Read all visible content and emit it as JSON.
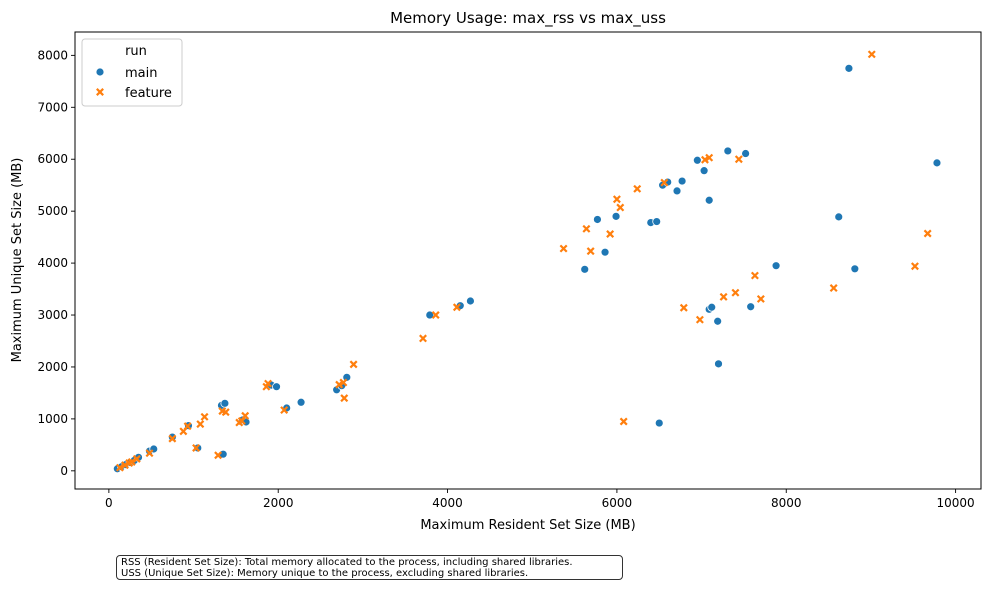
{
  "chart_data": {
    "type": "scatter",
    "title": "Memory Usage: max_rss vs max_uss",
    "xlabel": "Maximum Resident Set Size (MB)",
    "ylabel": "Maximum Unique Set Size (MB)",
    "xlim": [
      -400,
      10300
    ],
    "ylim": [
      -350,
      8450
    ],
    "xticks": [
      0,
      2000,
      4000,
      6000,
      8000,
      10000
    ],
    "yticks": [
      0,
      1000,
      2000,
      3000,
      4000,
      5000,
      6000,
      7000,
      8000
    ],
    "legend": {
      "title": "run",
      "position": "top-left"
    },
    "series": [
      {
        "name": "main",
        "marker": "circle",
        "color": "#1f77b4",
        "points": [
          [
            100,
            40
          ],
          [
            150,
            80
          ],
          [
            200,
            120
          ],
          [
            250,
            160
          ],
          [
            300,
            200
          ],
          [
            350,
            260
          ],
          [
            480,
            380
          ],
          [
            530,
            420
          ],
          [
            750,
            650
          ],
          [
            940,
            870
          ],
          [
            1050,
            440
          ],
          [
            1330,
            1260
          ],
          [
            1370,
            1300
          ],
          [
            1350,
            320
          ],
          [
            1580,
            980
          ],
          [
            1620,
            940
          ],
          [
            1920,
            1650
          ],
          [
            1980,
            1620
          ],
          [
            2100,
            1210
          ],
          [
            2270,
            1320
          ],
          [
            2690,
            1560
          ],
          [
            2750,
            1640
          ],
          [
            2810,
            1800
          ],
          [
            3790,
            3000
          ],
          [
            4150,
            3180
          ],
          [
            4270,
            3270
          ],
          [
            5620,
            3880
          ],
          [
            5770,
            4840
          ],
          [
            5860,
            4210
          ],
          [
            5990,
            4900
          ],
          [
            6400,
            4780
          ],
          [
            6470,
            4800
          ],
          [
            6500,
            920
          ],
          [
            6540,
            5500
          ],
          [
            6600,
            5560
          ],
          [
            6710,
            5390
          ],
          [
            6770,
            5580
          ],
          [
            6950,
            5980
          ],
          [
            7030,
            5780
          ],
          [
            7090,
            5210
          ],
          [
            7090,
            3110
          ],
          [
            7120,
            3150
          ],
          [
            7190,
            2880
          ],
          [
            7200,
            2060
          ],
          [
            7310,
            6160
          ],
          [
            7520,
            6110
          ],
          [
            7580,
            3160
          ],
          [
            7880,
            3950
          ],
          [
            8620,
            4890
          ],
          [
            8740,
            7750
          ],
          [
            8810,
            3890
          ],
          [
            9780,
            5930
          ]
        ]
      },
      {
        "name": "feature",
        "marker": "x",
        "color": "#ff7f0e",
        "points": [
          [
            130,
            60
          ],
          [
            190,
            110
          ],
          [
            240,
            150
          ],
          [
            270,
            170
          ],
          [
            330,
            230
          ],
          [
            480,
            340
          ],
          [
            750,
            620
          ],
          [
            880,
            760
          ],
          [
            930,
            860
          ],
          [
            1030,
            440
          ],
          [
            1080,
            900
          ],
          [
            1130,
            1040
          ],
          [
            1290,
            300
          ],
          [
            1340,
            1150
          ],
          [
            1380,
            1130
          ],
          [
            1540,
            930
          ],
          [
            1570,
            960
          ],
          [
            1610,
            1060
          ],
          [
            1860,
            1620
          ],
          [
            1880,
            1680
          ],
          [
            2070,
            1170
          ],
          [
            2720,
            1660
          ],
          [
            2770,
            1700
          ],
          [
            2780,
            1400
          ],
          [
            2890,
            2050
          ],
          [
            3710,
            2550
          ],
          [
            3860,
            3000
          ],
          [
            4110,
            3150
          ],
          [
            5370,
            4280
          ],
          [
            5640,
            4660
          ],
          [
            5690,
            4230
          ],
          [
            5920,
            4560
          ],
          [
            6000,
            5230
          ],
          [
            6040,
            5070
          ],
          [
            6240,
            5430
          ],
          [
            6080,
            950
          ],
          [
            6560,
            5550
          ],
          [
            6790,
            3140
          ],
          [
            6980,
            2910
          ],
          [
            7040,
            5990
          ],
          [
            7090,
            6030
          ],
          [
            7260,
            3350
          ],
          [
            7400,
            3430
          ],
          [
            7440,
            6000
          ],
          [
            7630,
            3760
          ],
          [
            7700,
            3310
          ],
          [
            8560,
            3520
          ],
          [
            9010,
            8020
          ],
          [
            9520,
            3940
          ],
          [
            9670,
            4570
          ]
        ]
      }
    ],
    "annotation": [
      "RSS (Resident Set Size): Total memory allocated to the process, including shared libraries.",
      "USS (Unique Set Size): Memory unique to the process, excluding shared libraries."
    ]
  }
}
